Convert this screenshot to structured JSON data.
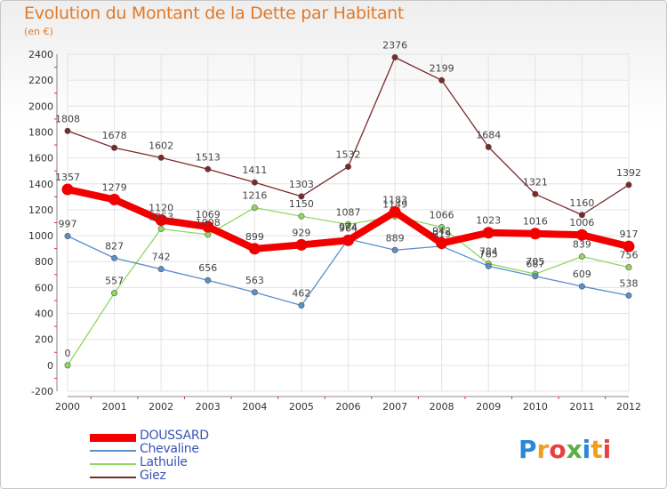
{
  "title": "Evolution du Montant de la Dette par Habitant",
  "subtitle": "(en €)",
  "logo_text": "Proxiti",
  "colors": {
    "title": "#e07a2a",
    "grid": "#e3e3e3",
    "axis_text": "#333333",
    "legend_text": "#3a54b8"
  },
  "chart_data": {
    "type": "line",
    "x": [
      "2000",
      "2001",
      "2002",
      "2003",
      "2004",
      "2005",
      "2006",
      "2007",
      "2008",
      "2009",
      "2010",
      "2011",
      "2012"
    ],
    "ylim": [
      -200,
      2500
    ],
    "yticks": [
      -200,
      0,
      200,
      400,
      600,
      800,
      1000,
      1200,
      1400,
      1600,
      1800,
      2000,
      2200,
      2400
    ],
    "grid": true,
    "legend_position": "bottom-left",
    "series": [
      {
        "name": "DOUSSARD",
        "color": "#f20000",
        "values": [
          1357,
          1279,
          1120,
          1069,
          899,
          929,
          964,
          1183,
          942,
          1023,
          1016,
          1006,
          917
        ],
        "labels": [
          "1357",
          "1279",
          "1120",
          "1069",
          "899",
          "929",
          "964",
          "1183",
          "942",
          "1023",
          "1016",
          "1006",
          "917"
        ]
      },
      {
        "name": "Chevaline",
        "color": "#5b8fcb",
        "values": [
          997,
          827,
          742,
          656,
          563,
          462,
          974,
          889,
          919,
          765,
          687,
          609,
          538
        ],
        "labels": [
          "997",
          "827",
          "742",
          "656",
          "563",
          "462",
          "974",
          "889",
          "919",
          "765",
          "687",
          "609",
          "538"
        ]
      },
      {
        "name": "Lathuile",
        "color": "#8fd860",
        "values": [
          0,
          557,
          1053,
          1008,
          1216,
          1150,
          1087,
          1149,
          1066,
          784,
          705,
          839,
          756
        ],
        "labels": [
          "0",
          "557",
          "1053",
          "1008",
          "1216",
          "1150",
          "1087",
          "1149",
          "1066",
          "784",
          "705",
          "839",
          "756"
        ]
      },
      {
        "name": "Giez",
        "color": "#7a2a2a",
        "values": [
          1808,
          1678,
          1602,
          1513,
          1411,
          1303,
          1532,
          2376,
          2199,
          1684,
          1321,
          1160,
          1392
        ],
        "labels": [
          "1808",
          "1678",
          "1602",
          "1513",
          "1411",
          "1303",
          "1532",
          "2376",
          "2199",
          "1684",
          "1321",
          "1160",
          "1392"
        ]
      }
    ]
  }
}
